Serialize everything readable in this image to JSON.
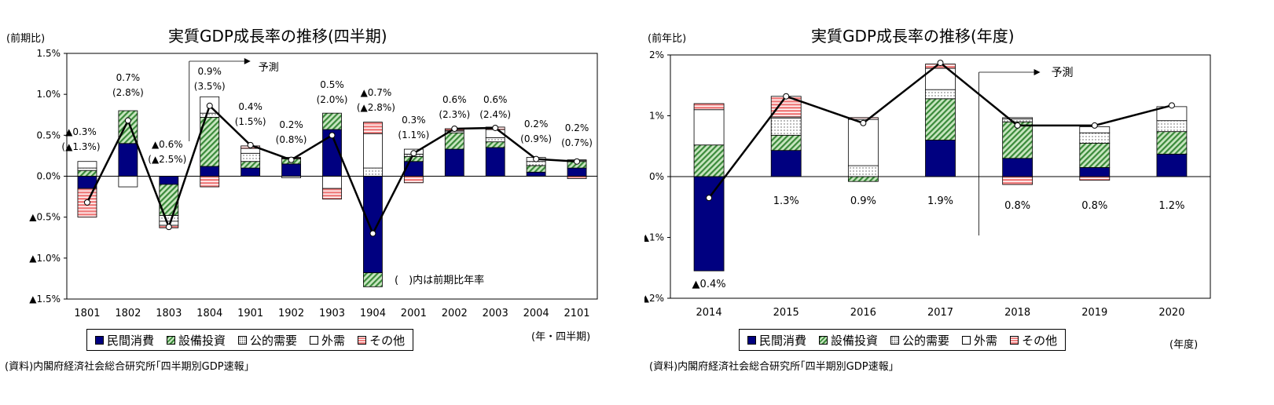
{
  "colors": {
    "private_consumption": "#000080",
    "capital_investment": "#3a8a3a",
    "capital_investment_bg": "#c8e6c0",
    "public_demand": "#ffffff",
    "external_demand": "#ffffff",
    "other": "#f08080",
    "line": "#000000"
  },
  "legend": [
    "民間消費",
    "設備投資",
    "公的需要",
    "外需",
    "その他"
  ],
  "chart_data": [
    {
      "type": "bar",
      "stacked": true,
      "title": "実質GDP成長率の推移(四半期)",
      "ylabel": "(前期比)",
      "xlabel": "(年・四半期)",
      "categories": [
        "1801",
        "1802",
        "1803",
        "1804",
        "1901",
        "1902",
        "1903",
        "1904",
        "2001",
        "2002",
        "2003",
        "2004",
        "2101"
      ],
      "ylim": [
        -1.5,
        1.5
      ],
      "yticks": [
        1.5,
        1.0,
        0.5,
        0.0,
        -0.5,
        -1.0,
        -1.5
      ],
      "ytick_labels": [
        "1.5%",
        "1.0%",
        "0.5%",
        "0.0%",
        "▲0.5%",
        "▲1.0%",
        "▲1.5%"
      ],
      "series": [
        {
          "name": "民間消費",
          "values": [
            -0.15,
            0.4,
            -0.1,
            0.12,
            0.1,
            0.15,
            0.57,
            -1.18,
            0.18,
            0.33,
            0.35,
            0.05,
            0.1
          ]
        },
        {
          "name": "設備投資",
          "values": [
            0.07,
            0.4,
            -0.38,
            0.6,
            0.08,
            0.06,
            0.2,
            -0.17,
            0.06,
            0.2,
            0.07,
            0.08,
            0.08
          ]
        },
        {
          "name": "公的需要",
          "values": [
            0.03,
            0.0,
            -0.07,
            0.05,
            0.1,
            0.01,
            0.0,
            0.1,
            0.03,
            0.02,
            0.05,
            0.05,
            0.01
          ]
        },
        {
          "name": "外需",
          "values": [
            0.08,
            -0.13,
            -0.05,
            0.2,
            0.06,
            -0.02,
            -0.15,
            0.42,
            0.06,
            0.01,
            0.1,
            0.05,
            0.01
          ]
        },
        {
          "name": "その他",
          "values": [
            -0.35,
            0.0,
            -0.03,
            -0.13,
            0.03,
            0.01,
            -0.13,
            0.14,
            -0.08,
            0.02,
            0.03,
            0.0,
            -0.03
          ]
        }
      ],
      "line": {
        "values": [
          -0.32,
          0.68,
          -0.62,
          0.86,
          0.38,
          0.2,
          0.5,
          -0.7,
          0.28,
          0.58,
          0.59,
          0.21,
          0.18
        ]
      },
      "annotations": [
        [
          "▲0.3%",
          "(▲1.3%)"
        ],
        [
          "0.7%",
          "(2.8%)"
        ],
        [
          "▲0.6%",
          "(▲2.5%)"
        ],
        [
          "0.9%",
          "(3.5%)"
        ],
        [
          "0.4%",
          "(1.5%)"
        ],
        [
          "0.2%",
          "(0.8%)"
        ],
        [
          "0.5%",
          "(2.0%)"
        ],
        [
          "▲0.7%",
          "(▲2.8%)"
        ],
        [
          "0.3%",
          "(1.1%)"
        ],
        [
          "0.6%",
          "(2.3%)"
        ],
        [
          "0.6%",
          "(2.4%)"
        ],
        [
          "0.2%",
          "(0.9%)"
        ],
        [
          "0.2%",
          "(0.7%)"
        ]
      ],
      "forecast_label": "予測",
      "note": "(　)内は前期比年率",
      "source": "(資料)内閣府経済社会総合研究所｢四半期別GDP速報｣"
    },
    {
      "type": "bar",
      "stacked": true,
      "title": "実質GDP成長率の推移(年度)",
      "ylabel": "(前年比)",
      "xlabel": "(年度)",
      "categories": [
        "2014",
        "2015",
        "2016",
        "2017",
        "2018",
        "2019",
        "2020"
      ],
      "ylim": [
        -2,
        2
      ],
      "yticks": [
        2,
        1,
        0,
        -1,
        -2
      ],
      "ytick_labels": [
        "2%",
        "1%",
        "0%",
        "▲1%",
        "▲2%"
      ],
      "series": [
        {
          "name": "民間消費",
          "values": [
            -1.55,
            0.43,
            0.0,
            0.6,
            0.3,
            0.15,
            0.37
          ]
        },
        {
          "name": "設備投資",
          "values": [
            0.52,
            0.25,
            -0.08,
            0.68,
            0.6,
            0.4,
            0.37
          ]
        },
        {
          "name": "公的需要",
          "values": [
            0.0,
            0.28,
            0.18,
            0.15,
            0.05,
            0.17,
            0.18
          ]
        },
        {
          "name": "外需",
          "values": [
            0.58,
            0.02,
            0.76,
            0.35,
            0.02,
            0.1,
            0.23
          ]
        },
        {
          "name": "その他",
          "values": [
            0.1,
            0.34,
            0.03,
            0.07,
            -0.13,
            -0.06,
            0.0
          ]
        }
      ],
      "line": {
        "values": [
          -0.35,
          1.32,
          0.88,
          1.87,
          0.84,
          0.84,
          1.17
        ]
      },
      "annotations": [
        "▲0.4%",
        "1.3%",
        "0.9%",
        "1.9%",
        "0.8%",
        "0.8%",
        "1.2%"
      ],
      "forecast_label": "予測",
      "source": "(資料)内閣府経済社会総合研究所｢四半期別GDP速報｣"
    }
  ]
}
